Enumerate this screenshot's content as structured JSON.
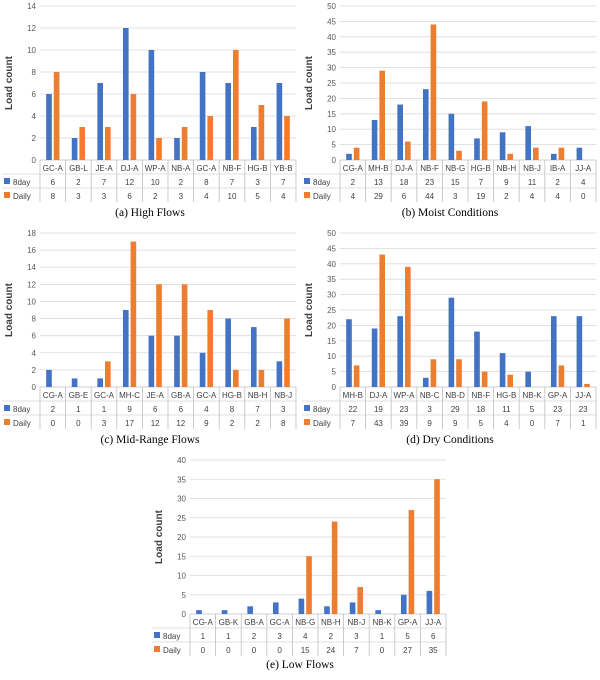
{
  "colors": {
    "series_8day": "#4472C4",
    "series_daily": "#ED7D31",
    "grid": "#d9d9d9",
    "axis": "#bfbfbf"
  },
  "chart_data": [
    {
      "type": "bar",
      "caption": "(a)  High Flows",
      "ylabel": "Load count",
      "ylim": [
        0,
        14
      ],
      "ystep": 2,
      "grid": true,
      "categories": [
        "GC-A",
        "GB-L",
        "JE-A",
        "DJ-A",
        "WP-A",
        "NB-A",
        "GC-A",
        "NB-F",
        "HG-B",
        "YB-B"
      ],
      "series": [
        {
          "name": "8day",
          "values": [
            6,
            2,
            7,
            12,
            10,
            2,
            8,
            7,
            3,
            7
          ]
        },
        {
          "name": "Daily",
          "values": [
            8,
            3,
            3,
            6,
            2,
            3,
            4,
            10,
            5,
            4
          ]
        }
      ]
    },
    {
      "type": "bar",
      "caption": "(b)  Moist Conditions",
      "ylabel": "Load count",
      "ylim": [
        0,
        50
      ],
      "ystep": 5,
      "grid": true,
      "categories": [
        "CG-A",
        "MH-B",
        "DJ-A",
        "NB-F",
        "NB-G",
        "HG-B",
        "NB-H",
        "NB-J",
        "IB-A",
        "JJ-A"
      ],
      "series": [
        {
          "name": "8day",
          "values": [
            2,
            13,
            18,
            23,
            15,
            7,
            9,
            11,
            2,
            4
          ]
        },
        {
          "name": "Daily",
          "values": [
            4,
            29,
            6,
            44,
            3,
            19,
            2,
            4,
            4,
            0
          ]
        }
      ]
    },
    {
      "type": "bar",
      "caption": "(c)  Mid-Range Flows",
      "ylabel": "Load count",
      "ylim": [
        0,
        18
      ],
      "ystep": 2,
      "grid": true,
      "categories": [
        "CG-A",
        "GB-E",
        "GC-A",
        "MH-C",
        "JE-A",
        "GB-A",
        "GC-A",
        "HG-B",
        "NB-H",
        "NB-J"
      ],
      "series": [
        {
          "name": "8day",
          "values": [
            2,
            1,
            1,
            9,
            6,
            6,
            4,
            8,
            7,
            3
          ]
        },
        {
          "name": "Daily",
          "values": [
            0,
            0,
            3,
            17,
            12,
            12,
            9,
            2,
            2,
            8
          ]
        }
      ]
    },
    {
      "type": "bar",
      "caption": "(d)  Dry Conditions",
      "ylabel": "Load count",
      "ylim": [
        0,
        50
      ],
      "ystep": 5,
      "grid": true,
      "categories": [
        "MH-B",
        "DJ-A",
        "WP-A",
        "NB-C",
        "NB-D",
        "NB-F",
        "HG-B",
        "NB-K",
        "GP-A",
        "JJ-A"
      ],
      "series": [
        {
          "name": "8day",
          "values": [
            22,
            19,
            23,
            3,
            29,
            18,
            11,
            5,
            23,
            23
          ]
        },
        {
          "name": "Daily",
          "values": [
            7,
            43,
            39,
            9,
            9,
            5,
            4,
            0,
            7,
            1
          ]
        }
      ]
    },
    {
      "type": "bar",
      "caption": "(e)  Low Flows",
      "ylabel": "Load count",
      "ylim": [
        0,
        40
      ],
      "ystep": 5,
      "grid": true,
      "categories": [
        "CG-A",
        "GB-K",
        "GB-A",
        "GC-A",
        "NB-G",
        "NB-H",
        "NB-J",
        "NB-K",
        "GP-A",
        "JJ-A"
      ],
      "series": [
        {
          "name": "8day",
          "values": [
            1,
            1,
            2,
            3,
            4,
            2,
            3,
            1,
            5,
            6
          ]
        },
        {
          "name": "Daily",
          "values": [
            0,
            0,
            0,
            0,
            15,
            24,
            7,
            0,
            27,
            35
          ]
        }
      ]
    }
  ]
}
